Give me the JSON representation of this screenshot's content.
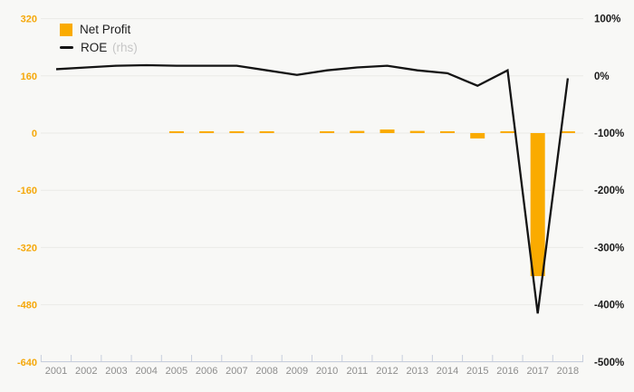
{
  "legend": {
    "net_profit": "Net Profit",
    "roe": "ROE",
    "rhs_note": "(rhs)"
  },
  "colors": {
    "bar": "#FAAB00",
    "line": "#141414",
    "left_axis_labels": "#F5A80B",
    "right_axis_labels": "#1a1a1a",
    "year_labels": "#8d8d8d",
    "gridline": "#eaeae7",
    "axis_line": "#c7cedd",
    "background": "#f8f8f6"
  },
  "chart_data": {
    "type": "bar",
    "subtype": "bar-line-combo",
    "title": "",
    "xlabel": "",
    "ylabel": "",
    "grid": "horizontal",
    "legend_position": "top-left",
    "categories": [
      "2001",
      "2002",
      "2003",
      "2004",
      "2005",
      "2006",
      "2007",
      "2008",
      "2009",
      "2010",
      "2011",
      "2012",
      "2013",
      "2014",
      "2015",
      "2016",
      "2017",
      "2018"
    ],
    "series": [
      {
        "name": "Net Profit",
        "type": "bar",
        "axis": "left",
        "values": [
          null,
          null,
          null,
          null,
          2,
          3,
          3,
          2,
          0,
          3,
          6,
          10,
          6,
          2,
          -15,
          2,
          -400,
          3
        ]
      },
      {
        "name": "ROE (rhs)",
        "type": "line",
        "axis": "right",
        "unit": "%",
        "values": [
          12,
          15,
          18,
          19,
          18,
          18,
          18,
          10,
          2,
          10,
          15,
          18,
          10,
          5,
          -17,
          10,
          -415,
          -4
        ]
      }
    ],
    "left_axis": {
      "ticks": [
        320,
        160,
        0,
        -160,
        -320,
        -480,
        -640
      ],
      "range": [
        -640,
        320
      ]
    },
    "right_axis": {
      "ticks": [
        "100%",
        "0%",
        "-100%",
        "-200%",
        "-300%",
        "-400%",
        "-500%"
      ],
      "tick_values": [
        100,
        0,
        -100,
        -200,
        -300,
        -400,
        -500
      ],
      "range": [
        -500,
        100
      ]
    }
  }
}
